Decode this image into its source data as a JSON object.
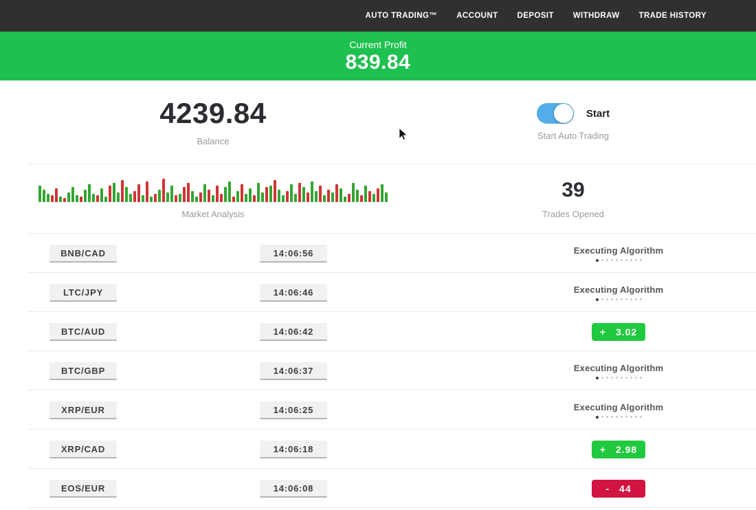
{
  "navbar": {
    "items": [
      "AUTO TRADING™",
      "ACCOUNT",
      "DEPOSIT",
      "WITHDRAW",
      "TRADE HISTORY"
    ]
  },
  "banner": {
    "label": "Current Profit",
    "value": "839.84",
    "bg": "#1ec04f"
  },
  "stats": {
    "balance": {
      "value": "4239.84",
      "label": "Balance"
    },
    "auto_trading": {
      "toggle_label": "Start",
      "label": "Start Auto Trading",
      "toggle_on": true,
      "toggle_color": "#52ade8"
    },
    "market_analysis": {
      "label": "Market Analysis",
      "bars": [
        "g24",
        "g18",
        "g12",
        "r10",
        "r20",
        "g8",
        "r6",
        "g14",
        "g22",
        "g10",
        "r8",
        "g18",
        "g26",
        "g12",
        "r10",
        "g20",
        "g8",
        "r24",
        "g28",
        "g14",
        "r32",
        "g22",
        "g12",
        "r16",
        "r26",
        "g10",
        "r30",
        "g8",
        "r12",
        "g18",
        "r34",
        "g14",
        "g24",
        "r10",
        "g12",
        "r22",
        "r28",
        "g16",
        "g8",
        "r14",
        "g26",
        "r18",
        "g10",
        "r24",
        "r12",
        "g22",
        "g30",
        "r8",
        "g16",
        "r26",
        "g12",
        "g20",
        "r10",
        "g28",
        "g14",
        "r22",
        "g24",
        "r32",
        "g18",
        "g10",
        "r16",
        "g26",
        "g12",
        "r28",
        "g22",
        "r14",
        "g30",
        "g16",
        "r24",
        "g10",
        "r18",
        "g14",
        "r26",
        "g20",
        "g8",
        "r12",
        "g28",
        "g18",
        "r10",
        "g24",
        "r16",
        "g12",
        "r20",
        "g26",
        "g14"
      ]
    },
    "trades_opened": {
      "value": "39",
      "label": "Trades Opened"
    }
  },
  "colors": {
    "banner_green": "#1ec04f",
    "profit_green": "#21c93e",
    "loss_red": "#d11442",
    "bar_green": "#33a532",
    "bar_red": "#cf3434",
    "toggle_blue": "#52ade8"
  },
  "trades": {
    "executing_label": "Executing Algorithm",
    "dots_total": 10,
    "dots_active": 1,
    "rows": [
      {
        "pair": "BNB/CAD",
        "time": "14:06:56",
        "status": "executing"
      },
      {
        "pair": "LTC/JPY",
        "time": "14:06:46",
        "status": "executing"
      },
      {
        "pair": "BTC/AUD",
        "time": "14:06:42",
        "status": "profit",
        "sign": "+",
        "value": "3.02"
      },
      {
        "pair": "BTC/GBP",
        "time": "14:06:37",
        "status": "executing"
      },
      {
        "pair": "XRP/EUR",
        "time": "14:06:25",
        "status": "executing"
      },
      {
        "pair": "XRP/CAD",
        "time": "14:06:18",
        "status": "profit",
        "sign": "+",
        "value": "2.98"
      },
      {
        "pair": "EOS/EUR",
        "time": "14:06:08",
        "status": "loss",
        "sign": "-",
        "value": "44"
      }
    ]
  }
}
